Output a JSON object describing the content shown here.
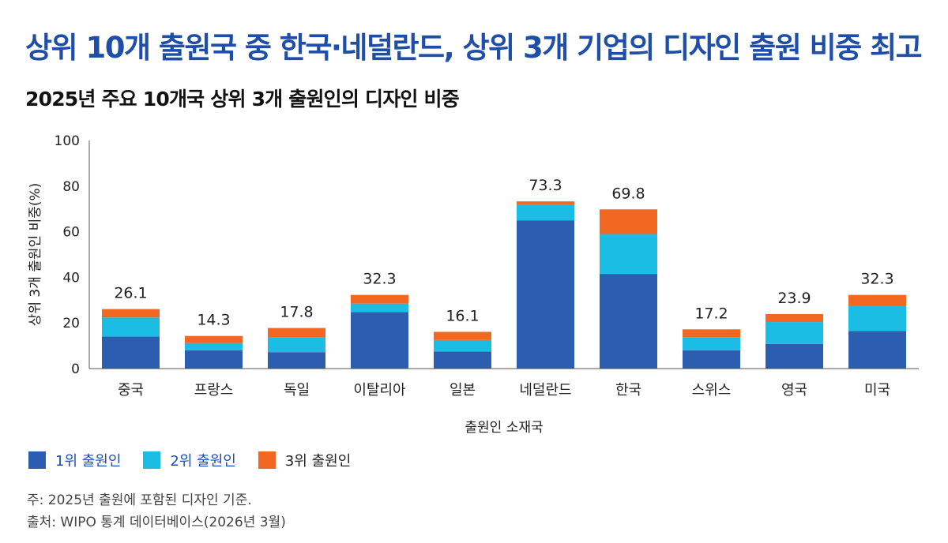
{
  "headline": "상위 10개 출원국 중 한국·네덜란드, 상위 3개 기업의 디자인 출원 비중 최고",
  "chart_data": {
    "type": "bar",
    "stacked": true,
    "title": "2025년 주요 10개국 상위 3개 출원인의 디자인 비중",
    "xlabel": "출원인 소재국",
    "ylabel": "상위 3개 출원인 비중(%)",
    "ylim": [
      0,
      100
    ],
    "yticks": [
      0,
      20,
      40,
      60,
      80,
      100
    ],
    "grid": false,
    "legend_position": "bottom-left",
    "categories": [
      "중국",
      "프랑스",
      "독일",
      "이탈리아",
      "일본",
      "네덜란드",
      "한국",
      "스위스",
      "영국",
      "미국"
    ],
    "series": [
      {
        "name": "1위 출원인",
        "color": "#2b5db0",
        "values": [
          14.0,
          8.0,
          7.2,
          24.8,
          7.5,
          65.0,
          41.5,
          8.0,
          10.8,
          16.5
        ]
      },
      {
        "name": "2위 출원인",
        "color": "#1bbde5",
        "values": [
          8.4,
          3.2,
          6.4,
          3.7,
          5.0,
          7.0,
          17.5,
          5.8,
          9.6,
          11.0
        ]
      },
      {
        "name": "3위 출원인",
        "color": "#f26722",
        "values": [
          3.7,
          3.1,
          4.2,
          3.8,
          3.6,
          1.3,
          10.8,
          3.4,
          3.5,
          4.8
        ]
      }
    ],
    "totals": [
      "26.1",
      "14.3",
      "17.8",
      "32.3",
      "16.1",
      "73.3",
      "69.8",
      "17.2",
      "23.9",
      "32.3"
    ]
  },
  "notes": [
    "주: 2025년 출원에 포함된 디자인 기준.",
    "출처: WIPO 통계 데이터베이스(2026년 3월)"
  ]
}
